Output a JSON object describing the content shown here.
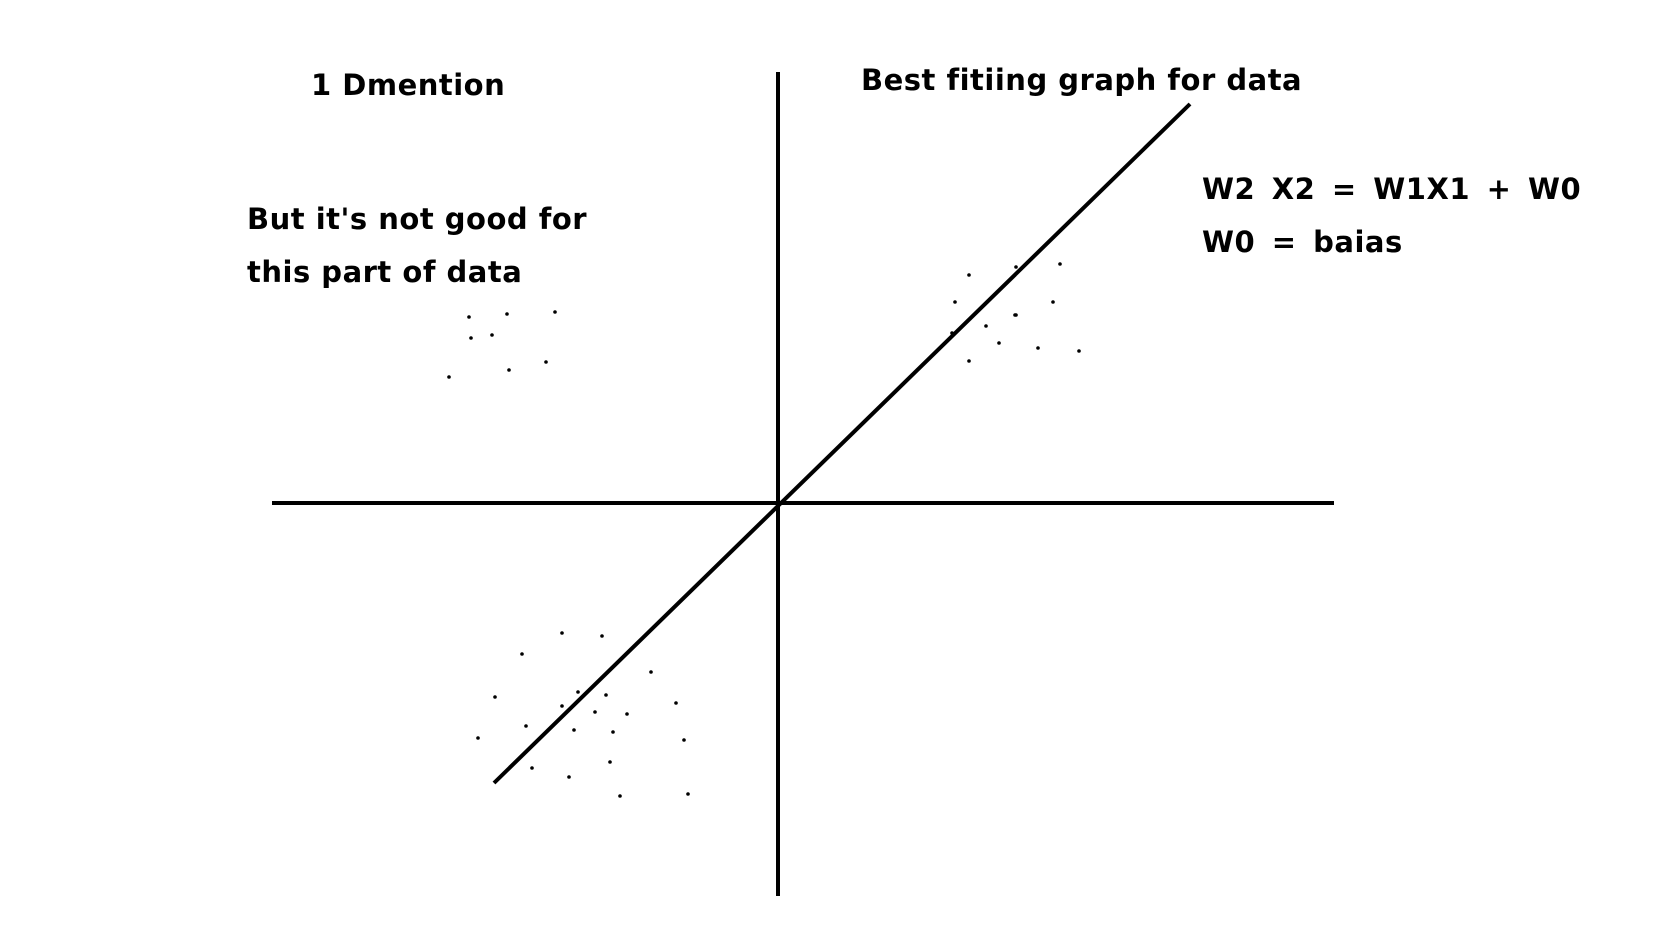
{
  "labels": {
    "dimension": "1 Dmention",
    "fit_title": "Best fitiing graph for data",
    "note_line1": "But it's not good for",
    "note_line2": "this part of data",
    "equation": "W2 X2 = W1X1 + W0",
    "bias": "W0 = baias"
  },
  "colors": {
    "ink": "#000000",
    "background": "#ffffff"
  }
}
